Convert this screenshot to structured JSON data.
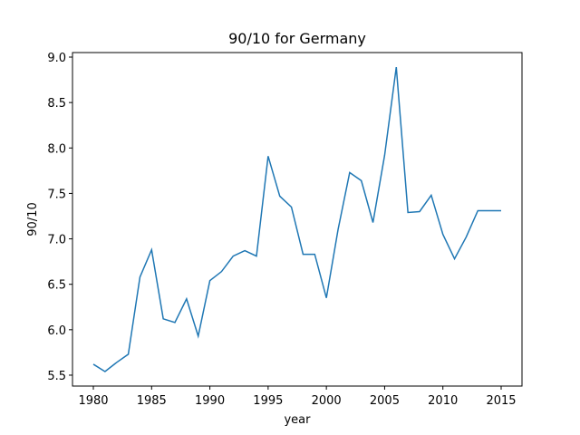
{
  "chart_data": {
    "type": "line",
    "title": "90/10 for Germany",
    "x_label": "year",
    "y_label": "90/10",
    "x": [
      1980,
      1981,
      1982,
      1983,
      1984,
      1985,
      1986,
      1987,
      1988,
      1989,
      1990,
      1991,
      1992,
      1993,
      1994,
      1995,
      1996,
      1997,
      1998,
      1999,
      2000,
      2001,
      2002,
      2003,
      2004,
      2005,
      2006,
      2007,
      2008,
      2009,
      2010,
      2011,
      2012,
      2013,
      2014,
      2015
    ],
    "series": [
      {
        "name": "90/10",
        "color": "#1f77b4",
        "values": [
          5.62,
          5.54,
          5.64,
          5.73,
          6.58,
          6.88,
          6.12,
          6.08,
          6.34,
          5.93,
          6.54,
          6.64,
          6.81,
          6.87,
          6.81,
          7.91,
          7.47,
          7.35,
          6.83,
          6.83,
          6.35,
          7.1,
          7.73,
          7.64,
          7.18,
          7.92,
          8.89,
          7.29,
          7.3,
          7.48,
          7.05,
          6.78,
          7.02,
          7.31,
          7.31,
          7.31
        ]
      }
    ],
    "xlim": [
      1978.21,
      2016.79
    ],
    "ylim": [
      5.38,
      9.05
    ],
    "xticks": [
      1980,
      1985,
      1990,
      1995,
      2000,
      2005,
      2010,
      2015
    ],
    "yticks": [
      {
        "value": 5.5,
        "label": "5.5"
      },
      {
        "value": 6.0,
        "label": "6.0"
      },
      {
        "value": 6.5,
        "label": "6.5"
      },
      {
        "value": 7.0,
        "label": "7.0"
      },
      {
        "value": 7.5,
        "label": "7.5"
      },
      {
        "value": 8.0,
        "label": "8.0"
      },
      {
        "value": 8.5,
        "label": "8.5"
      },
      {
        "value": 9.0,
        "label": "9.0"
      }
    ],
    "grid": false
  }
}
